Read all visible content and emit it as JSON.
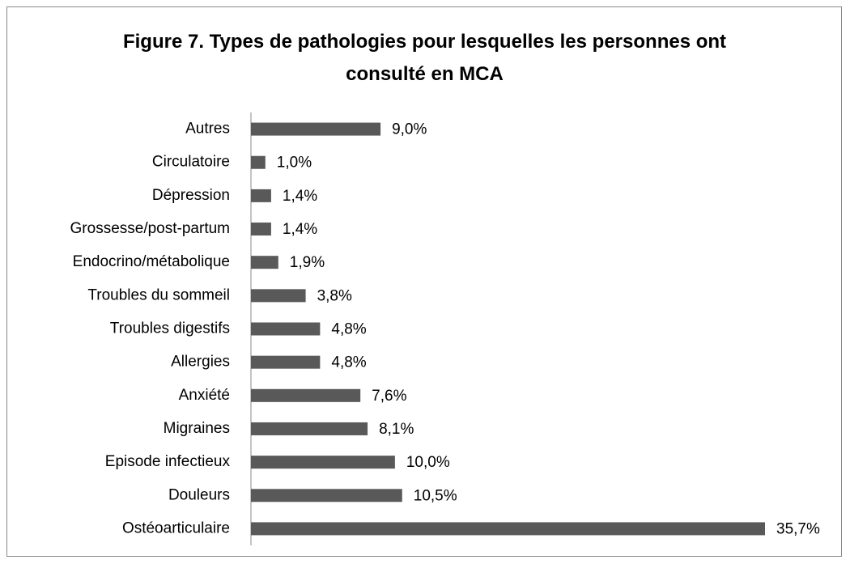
{
  "chart_data": {
    "type": "hbar",
    "title": "Figure 7. Types de pathologies pour lesquelles les personnes ont consulté en MCA",
    "categories": [
      "Autres",
      "Circulatoire",
      "Dépression",
      "Grossesse/post-partum",
      "Endocrino/métabolique",
      "Troubles du sommeil",
      "Troubles digestifs",
      "Allergies",
      "Anxiété",
      "Migraines",
      "Episode infectieux",
      "Douleurs",
      "Ostéoarticulaire"
    ],
    "values": [
      9.0,
      1.0,
      1.4,
      1.4,
      1.9,
      3.8,
      4.8,
      4.8,
      7.6,
      8.1,
      10.0,
      10.5,
      35.7
    ],
    "value_labels": [
      "9,0%",
      "1,0%",
      "1,4%",
      "1,4%",
      "1,9%",
      "3,8%",
      "4,8%",
      "4,8%",
      "7,6%",
      "8,1%",
      "10,0%",
      "10,5%",
      "35,7%"
    ],
    "color": "#595959"
  }
}
